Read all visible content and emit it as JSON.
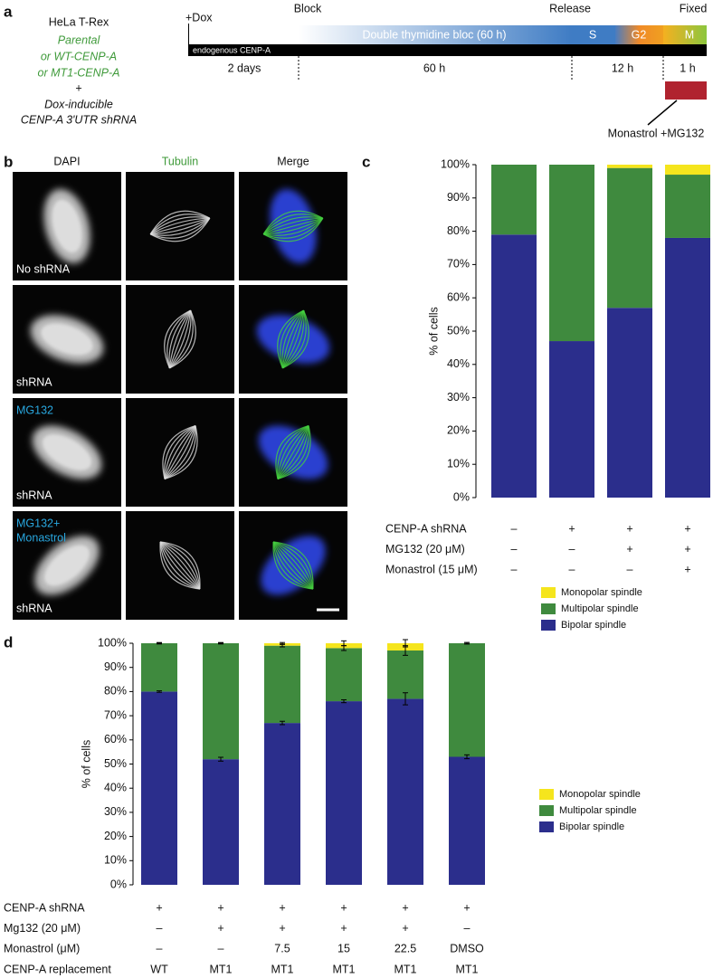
{
  "panel_a": {
    "label": "a",
    "lines": [
      "HeLa T-Rex",
      "Parental",
      "or WT-CENP-A",
      "or MT1-CENP-A",
      "+",
      "Dox-inducible",
      "CENP-A 3'UTR shRNA"
    ],
    "timeline": {
      "dox": "+Dox",
      "block": "Block",
      "release": "Release",
      "fixed": "Fixed",
      "endogenous": "endogenous CENP-A",
      "bloc": "Double thymidine bloc (60 h)",
      "s": "S",
      "g2": "G2",
      "m": "M",
      "d1": "2 days",
      "d2": "60 h",
      "d3": "12 h",
      "d4": "1 h",
      "drug": "Monastrol +MG132"
    }
  },
  "panel_b": {
    "label": "b",
    "columns": [
      "DAPI",
      "Tubulin",
      "Merge"
    ],
    "rows": [
      {
        "top": [],
        "bottom": "No shRNA"
      },
      {
        "top": [],
        "bottom": "shRNA"
      },
      {
        "top": [
          "MG132"
        ],
        "bottom": "shRNA"
      },
      {
        "top": [
          "MG132+",
          "Monastrol"
        ],
        "bottom": "shRNA"
      }
    ]
  },
  "chart_data": [
    {
      "type": "bar",
      "stacked": true,
      "panel_label": "c",
      "ylabel": "% of cells",
      "ylim": [
        0,
        100
      ],
      "yticks": [
        {
          "value": 0,
          "label": "0%"
        },
        {
          "value": 10,
          "label": "10%"
        },
        {
          "value": 20,
          "label": "20%"
        },
        {
          "value": 30,
          "label": "30%"
        },
        {
          "value": 40,
          "label": "40%"
        },
        {
          "value": 50,
          "label": "50%"
        },
        {
          "value": 60,
          "label": "60%"
        },
        {
          "value": 70,
          "label": "70%"
        },
        {
          "value": 80,
          "label": "80%"
        },
        {
          "value": 90,
          "label": "90%"
        },
        {
          "value": 100,
          "label": "100%"
        }
      ],
      "series": [
        {
          "name": "Bipolar spindle",
          "color": "#2b2e8c",
          "values": [
            79,
            47,
            57,
            78
          ]
        },
        {
          "name": "Multipolar spindle",
          "color": "#3f8a3e",
          "values": [
            21,
            53,
            42,
            19
          ]
        },
        {
          "name": "Monopolar spindle",
          "color": "#f5e51d",
          "values": [
            0,
            0,
            1,
            3
          ]
        }
      ],
      "conditions": [
        {
          "name": "CENP-A shRNA",
          "values": [
            "–",
            "+",
            "+",
            "+"
          ]
        },
        {
          "name": "MG132 (20 μM)",
          "values": [
            "–",
            "–",
            "+",
            "+"
          ]
        },
        {
          "name": "Monastrol (15 μM)",
          "values": [
            "–",
            "–",
            "–",
            "+"
          ]
        }
      ]
    },
    {
      "type": "bar",
      "stacked": true,
      "panel_label": "d",
      "ylabel": "% of cells",
      "ylim": [
        0,
        100
      ],
      "yticks": [
        {
          "value": 0,
          "label": "0%"
        },
        {
          "value": 10,
          "label": "10%"
        },
        {
          "value": 20,
          "label": "20%"
        },
        {
          "value": 30,
          "label": "30%"
        },
        {
          "value": 40,
          "label": "40%"
        },
        {
          "value": 50,
          "label": "50%"
        },
        {
          "value": 60,
          "label": "60%"
        },
        {
          "value": 70,
          "label": "70%"
        },
        {
          "value": 80,
          "label": "80%"
        },
        {
          "value": 90,
          "label": "90%"
        },
        {
          "value": 100,
          "label": "100%"
        }
      ],
      "series": [
        {
          "name": "Bipolar spindle",
          "color": "#2b2e8c",
          "values": [
            80,
            52,
            67,
            76,
            77,
            53
          ],
          "errors": [
            0.3,
            0.8,
            0.7,
            0.6,
            2.5,
            0.8
          ]
        },
        {
          "name": "Multipolar spindle",
          "color": "#3f8a3e",
          "values": [
            20,
            48,
            32,
            22,
            20,
            47
          ],
          "errors": [
            0.3,
            0.3,
            0.5,
            1,
            2,
            0.3
          ]
        },
        {
          "name": "Monopolar spindle",
          "color": "#f5e51d",
          "values": [
            0,
            0,
            1,
            2,
            3,
            0
          ],
          "errors": [
            0.1,
            0.1,
            0.3,
            1,
            1.5,
            0.3
          ]
        }
      ],
      "conditions": [
        {
          "name": "CENP-A shRNA",
          "values": [
            "+",
            "+",
            "+",
            "+",
            "+",
            "+"
          ]
        },
        {
          "name": "Mg132 (20 μM)",
          "values": [
            "–",
            "+",
            "+",
            "+",
            "+",
            "–"
          ]
        },
        {
          "name": "Monastrol (μM)",
          "values": [
            "–",
            "–",
            "7.5",
            "15",
            "22.5",
            "DMSO"
          ]
        },
        {
          "name": "CENP-A replacement",
          "values": [
            "WT",
            "MT1",
            "MT1",
            "MT1",
            "MT1",
            "MT1"
          ]
        }
      ]
    }
  ]
}
